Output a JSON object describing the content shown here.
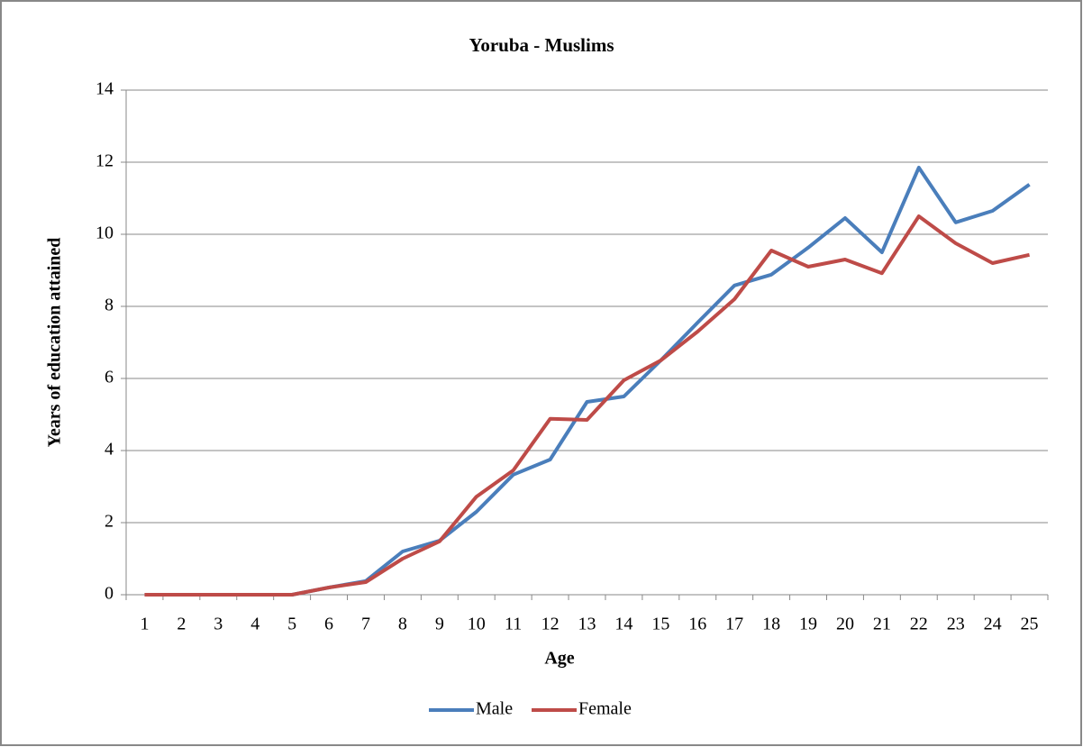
{
  "chart_data": {
    "type": "line",
    "title": "Yoruba - Muslims",
    "x_label": "Age",
    "y_label": "Years of education attained",
    "categories": [
      1,
      2,
      3,
      4,
      5,
      6,
      7,
      8,
      9,
      10,
      11,
      12,
      13,
      14,
      15,
      16,
      17,
      18,
      19,
      20,
      21,
      22,
      23,
      24,
      25
    ],
    "series": [
      {
        "name": "Male",
        "color": "#4a7ebb",
        "values": [
          0,
          0,
          0,
          0,
          0,
          0.2,
          0.38,
          1.2,
          1.5,
          2.3,
          3.33,
          3.75,
          5.35,
          5.5,
          6.5,
          7.55,
          8.58,
          8.88,
          9.63,
          10.45,
          9.5,
          11.85,
          10.33,
          10.65,
          11.38
        ]
      },
      {
        "name": "Female",
        "color": "#be4b48",
        "values": [
          0,
          0,
          0,
          0,
          0,
          0.2,
          0.35,
          1.0,
          1.48,
          2.72,
          3.45,
          4.88,
          4.85,
          5.95,
          6.5,
          7.3,
          8.2,
          9.55,
          9.1,
          9.3,
          8.92,
          10.5,
          9.75,
          9.2,
          9.43
        ]
      }
    ],
    "ylim": [
      0,
      14
    ],
    "yticks": [
      0,
      2,
      4,
      6,
      8,
      10,
      12,
      14
    ],
    "grid": true,
    "legend": "bottom"
  }
}
